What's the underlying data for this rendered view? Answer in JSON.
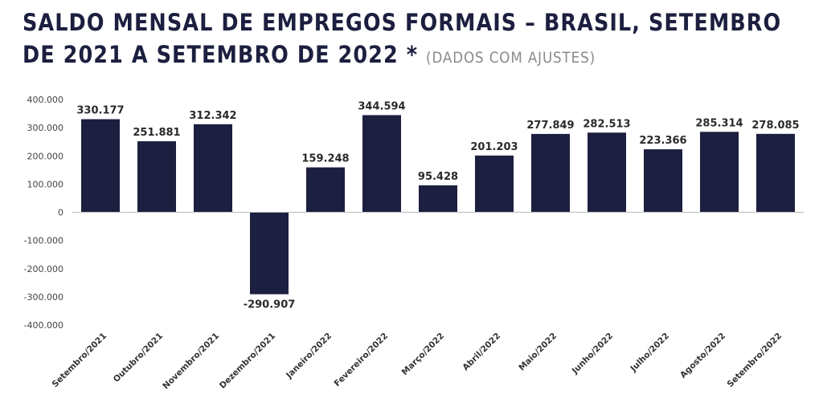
{
  "header": {
    "title_line1": "SALDO MENSAL DE EMPREGOS FORMAIS – BRASIL, SETEMBRO",
    "title_line2": "DE 2021 A SETEMBRO DE 2022 *",
    "subtitle": "(DADOS COM AJUSTES)"
  },
  "colors": {
    "bar": "#1c1f3f",
    "axis": "#bbbbbb"
  },
  "chart_data": {
    "type": "bar",
    "title": "SALDO MENSAL DE EMPREGOS FORMAIS – BRASIL, SETEMBRO DE 2021 A SETEMBRO DE 2022 *",
    "subtitle": "(DADOS COM AJUSTES)",
    "xlabel": "",
    "ylabel": "",
    "ylim": [
      -400000,
      400000
    ],
    "yticks": [
      400000,
      300000,
      200000,
      100000,
      0,
      -100000,
      -200000,
      -300000,
      -400000
    ],
    "ytick_labels": [
      "400.000",
      "300.000",
      "200.000",
      "100.000",
      "0",
      "-100.000",
      "-200.000",
      "-300.000",
      "-400.000"
    ],
    "categories": [
      "Setembro/2021",
      "Outubro/2021",
      "Novembro/2021",
      "Dezembro/2021",
      "Janeiro/2022",
      "Fevereiro/2022",
      "Março/2022",
      "Abril/2022",
      "Maio/2022",
      "Junho/2022",
      "Julho/2022",
      "Agosto/2022",
      "Setembro/2022"
    ],
    "values": [
      330177,
      251881,
      312342,
      -290907,
      159248,
      344594,
      95428,
      201203,
      277849,
      282513,
      223366,
      285314,
      278085
    ],
    "value_labels": [
      "330.177",
      "251.881",
      "312.342",
      "-290.907",
      "159.248",
      "344.594",
      "95.428",
      "201.203",
      "277.849",
      "282.513",
      "223.366",
      "285.314",
      "278.085"
    ],
    "grid": false,
    "legend": "none"
  }
}
